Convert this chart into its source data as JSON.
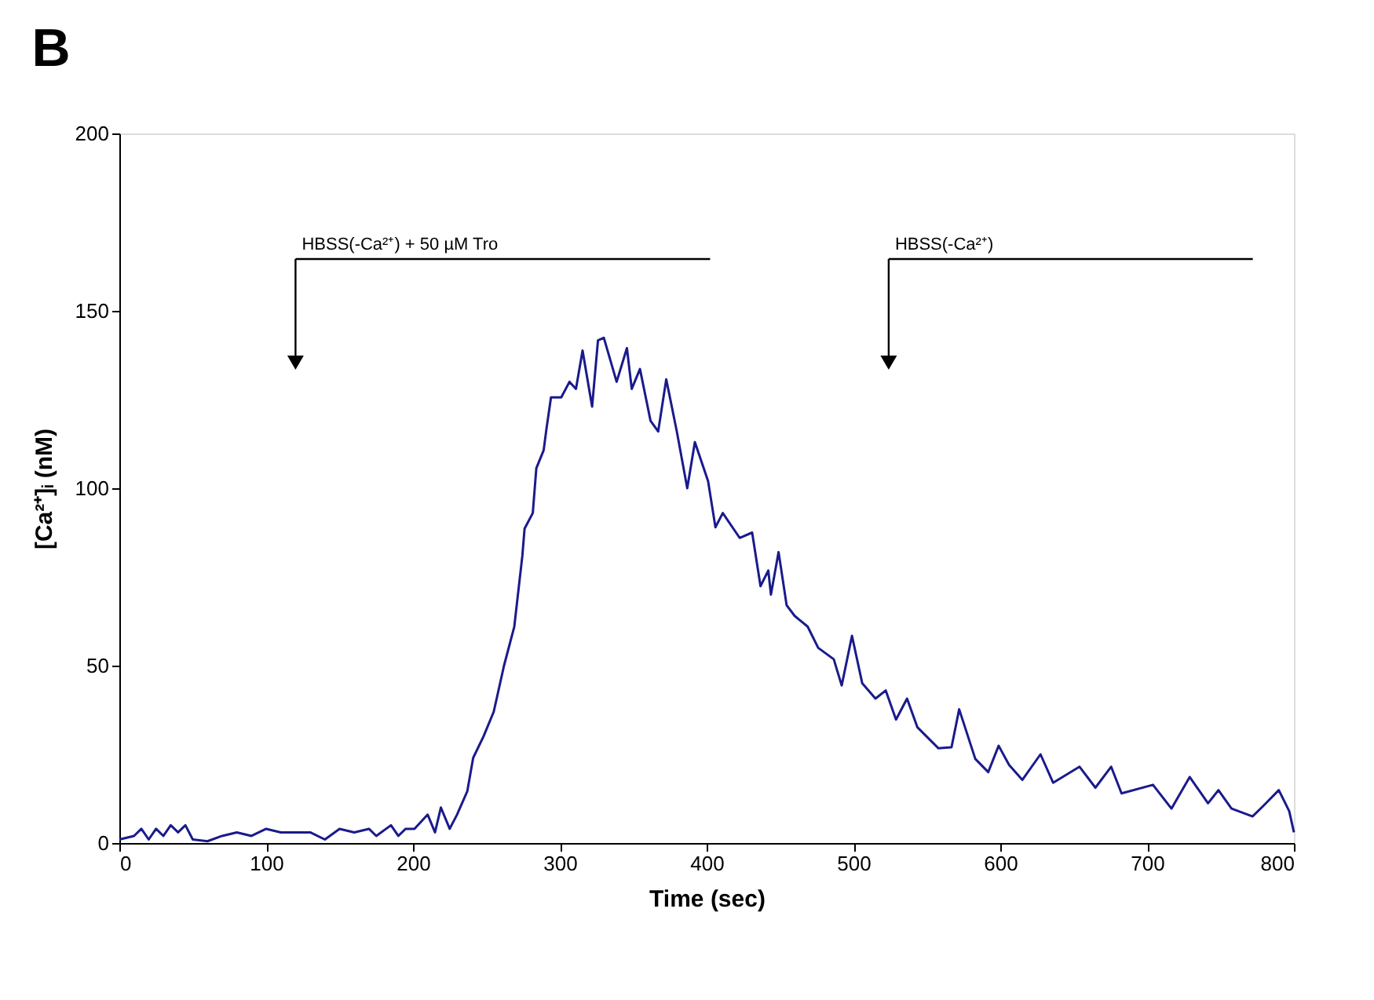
{
  "chart_data": {
    "type": "line",
    "title": "B",
    "xlabel": "Time (sec)",
    "ylabel": "[Ca²⁺]ᵢ (nM)",
    "xlim": [
      0,
      800
    ],
    "xticks": [
      0,
      100,
      200,
      300,
      400,
      500,
      600,
      700,
      800
    ],
    "ylim": [
      0,
      200
    ],
    "yticks": [
      0,
      50,
      100,
      150,
      200
    ],
    "grid": false,
    "marker": "none",
    "line_style": "solid",
    "annotations": [
      "HBSS(-Ca²⁺) + 50 µM Tro",
      "HBSS(-Ca²⁺)"
    ],
    "series": [
      {
        "color": "#1a1a8c",
        "x": [
          0,
          10,
          15,
          20,
          25,
          30,
          35,
          40,
          45,
          50,
          60,
          70,
          80,
          90,
          100,
          110,
          120,
          130,
          140,
          150,
          160,
          170,
          175,
          185,
          190,
          195,
          201,
          210,
          215,
          219,
          225,
          230,
          237,
          241,
          248,
          255,
          262,
          269,
          274.5,
          276,
          281.6,
          284,
          289,
          291,
          294,
          301,
          306.6,
          311,
          315.5,
          322,
          326,
          330,
          338.7,
          345.7,
          349,
          354.6,
          361.8,
          367,
          372.5,
          379.7,
          386.8,
          392,
          401,
          406,
          411,
          422.5,
          431,
          436.7,
          442,
          443.8,
          449,
          454.5,
          460,
          468.8,
          476,
          486.6,
          492,
          499,
          506,
          515,
          522,
          529,
          536.5,
          543.6,
          557.9,
          566.8,
          572,
          583,
          591.8,
          598.9,
          606,
          615,
          627.4,
          636,
          654,
          664.8,
          675.5,
          682.6,
          704,
          716.6,
          729,
          741.5,
          748.6,
          757.5,
          771.8,
          779,
          789.7,
          796.8,
          800
        ],
        "values": [
          1,
          2,
          4,
          1,
          4,
          2,
          5,
          3,
          5,
          1,
          0.5,
          2,
          3,
          2,
          4,
          3,
          3,
          3,
          1,
          4,
          3,
          4,
          2,
          5,
          2,
          4,
          4,
          8,
          3,
          10,
          4,
          8,
          14.6,
          24,
          30,
          37,
          50,
          61,
          81,
          88.6,
          93,
          105.6,
          110.7,
          117,
          125.6,
          125.6,
          130,
          128,
          138.8,
          123,
          141.7,
          142.4,
          130,
          139.5,
          128,
          133.6,
          119,
          116,
          130.7,
          116,
          100,
          113,
          102,
          89,
          93,
          86,
          87.5,
          72.4,
          76.8,
          70,
          82,
          67,
          64,
          61,
          55,
          51.8,
          44.4,
          58.4,
          45,
          40.7,
          43,
          34.8,
          40.7,
          32.6,
          26.7,
          27,
          37.7,
          23.7,
          20,
          27.4,
          22,
          17.8,
          25,
          17,
          21.5,
          15.6,
          21.5,
          14,
          16.4,
          9.7,
          18.6,
          11.2,
          14.9,
          9.7,
          7.5,
          10.4,
          14.9,
          9,
          3
        ]
      }
    ]
  }
}
